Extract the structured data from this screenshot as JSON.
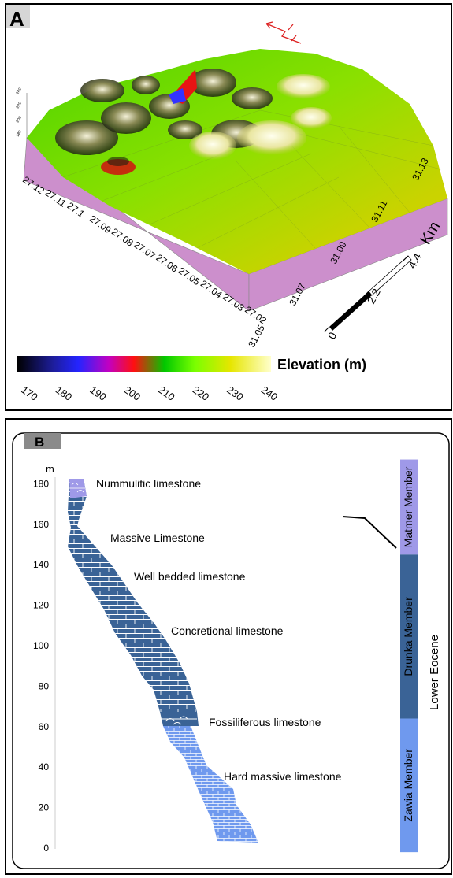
{
  "panel_a": {
    "label": "A",
    "latitude_ticks": [
      "27.12",
      "27.11",
      "27.1",
      "27.09",
      "27.08",
      "27.07",
      "27.06",
      "27.05",
      "27.04",
      "27.03",
      "27.02"
    ],
    "longitude_ticks": [
      "31.05",
      "31.07",
      "31.09",
      "31.11",
      "31.13"
    ],
    "vertical_ticks": [
      "240",
      "220",
      "200",
      "180"
    ],
    "scale_bar": {
      "ticks": [
        "0",
        "2.2",
        "4.4"
      ],
      "unit": "Km"
    },
    "colorbar": {
      "title": "Elevation (m)",
      "ticks": [
        "170",
        "180",
        "190",
        "200",
        "210",
        "220",
        "230",
        "240"
      ],
      "stops": [
        "#000000",
        "#1d1d9a",
        "#2424ff",
        "#c200c2",
        "#ff1010",
        "#00c800",
        "#7aff00",
        "#e6e600",
        "#ffffcc"
      ]
    },
    "base_color": "#cc8fcc"
  },
  "panel_b": {
    "label": "B",
    "y_unit": "m",
    "y_ticks": [
      "0",
      "20",
      "40",
      "60",
      "80",
      "100",
      "120",
      "140",
      "160",
      "180"
    ],
    "lithology": [
      {
        "name": "Nummulitic limestone",
        "from": 172,
        "to": 180
      },
      {
        "name": "Massive Limestone",
        "from": 140,
        "to": 172
      },
      {
        "name": "Well bedded limestone",
        "from": 118,
        "to": 140
      },
      {
        "name": "Concretional limestone",
        "from": 66,
        "to": 118
      },
      {
        "name": "Fossiliferous limestone",
        "from": 58,
        "to": 66
      },
      {
        "name": "Hard massive limestone",
        "from": 0,
        "to": 58
      }
    ],
    "members": [
      {
        "name": "Matmer Member",
        "from": 145,
        "to": 192,
        "color": "#9f99e8"
      },
      {
        "name": "Drunka Member",
        "from": 64,
        "to": 145,
        "color": "#3a6396"
      },
      {
        "name": "Zawia Member",
        "from": -2,
        "to": 64,
        "color": "#6f99ee"
      }
    ],
    "epoch": "Lower Eocene"
  }
}
